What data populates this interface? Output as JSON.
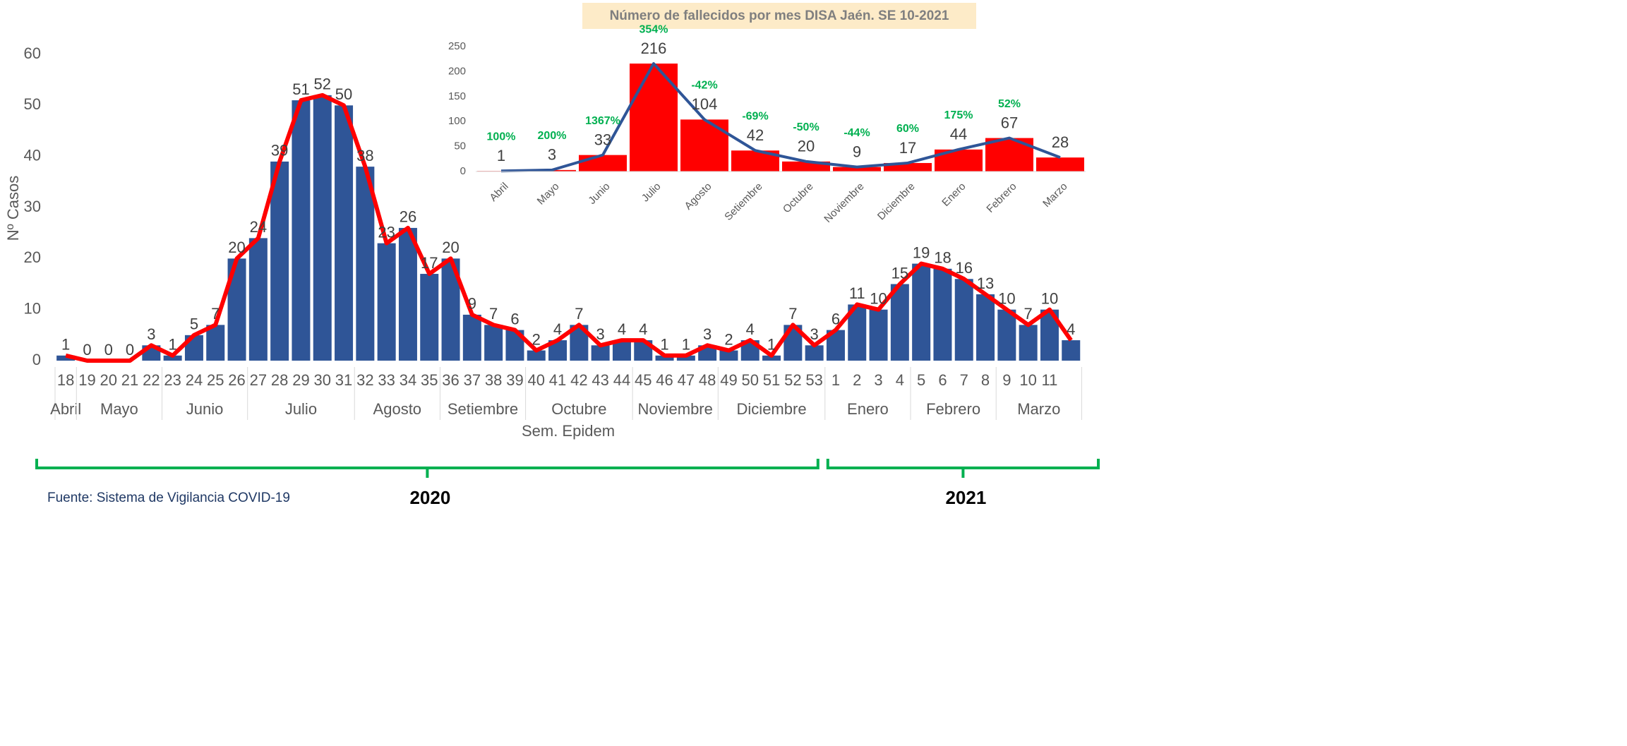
{
  "chart_data": [
    {
      "type": "bar",
      "x_label": "Sem. Epidem",
      "y_label": "Nº Casos",
      "categories": [
        "18",
        "19",
        "20",
        "21",
        "22",
        "23",
        "24",
        "25",
        "26",
        "27",
        "28",
        "29",
        "30",
        "31",
        "32",
        "33",
        "34",
        "35",
        "36",
        "37",
        "38",
        "39",
        "40",
        "41",
        "42",
        "43",
        "44",
        "45",
        "46",
        "47",
        "48",
        "49",
        "50",
        "51",
        "52",
        "53",
        "1",
        "2",
        "3",
        "4",
        "5",
        "6",
        "7",
        "8",
        "9",
        "10",
        "11",
        null
      ],
      "months": [
        "Abril",
        "Mayo",
        "Mayo",
        "Mayo",
        "Mayo",
        "Junio",
        "Junio",
        "Junio",
        "Junio",
        "Julio",
        "Julio",
        "Julio",
        "Julio",
        "Julio",
        "Agosto",
        "Agosto",
        "Agosto",
        "Agosto",
        "Setiembre",
        "Setiembre",
        "Setiembre",
        "Setiembre",
        "Octubre",
        "Octubre",
        "Octubre",
        "Octubre",
        "Octubre",
        "Noviembre",
        "Noviembre",
        "Noviembre",
        "Noviembre",
        "Diciembre",
        "Diciembre",
        "Diciembre",
        "Diciembre",
        "Diciembre",
        "Enero",
        "Enero",
        "Enero",
        "Enero",
        "Febrero",
        "Febrero",
        "Febrero",
        "Febrero",
        "Marzo",
        "Marzo",
        "Marzo",
        "Marzo"
      ],
      "years": [
        "2020",
        "2020",
        "2020",
        "2020",
        "2020",
        "2020",
        "2020",
        "2020",
        "2020",
        "2020",
        "2020",
        "2020",
        "2020",
        "2020",
        "2020",
        "2020",
        "2020",
        "2020",
        "2020",
        "2020",
        "2020",
        "2020",
        "2020",
        "2020",
        "2020",
        "2020",
        "2020",
        "2020",
        "2020",
        "2020",
        "2020",
        "2020",
        "2020",
        "2020",
        "2020",
        "2020",
        "2021",
        "2021",
        "2021",
        "2021",
        "2021",
        "2021",
        "2021",
        "2021",
        "2021",
        "2021",
        "2021",
        "2021"
      ],
      "values": [
        1,
        0,
        0,
        0,
        3,
        1,
        5,
        7,
        20,
        24,
        39,
        51,
        52,
        50,
        38,
        23,
        26,
        17,
        20,
        9,
        7,
        6,
        2,
        4,
        7,
        3,
        4,
        4,
        1,
        1,
        3,
        2,
        4,
        1,
        7,
        3,
        6,
        11,
        10,
        15,
        19,
        18,
        16,
        13,
        10,
        7,
        10,
        4
      ],
      "color": "#2f5597",
      "line_color": "#ff0000",
      "ylim": [
        0,
        60
      ],
      "yticks": [
        0,
        10,
        20,
        30,
        40,
        50,
        60
      ],
      "grid": false
    },
    {
      "type": "bar",
      "title": "Número de fallecidos por mes DISA Jaén. SE 10-2021",
      "categories": [
        "Abril",
        "Mayo",
        "Junio",
        "Julio",
        "Agosto",
        "Setiembre",
        "Octubre",
        "Noviembre",
        "Diciembre",
        "Enero",
        "Febrero",
        "Marzo"
      ],
      "values": [
        1,
        3,
        33,
        216,
        104,
        42,
        20,
        9,
        17,
        44,
        67,
        28
      ],
      "pct_change": [
        100,
        200,
        1367,
        354,
        -42,
        -69,
        -50,
        -44,
        60,
        175,
        52,
        null
      ],
      "pct_change_labels": [
        "100%",
        "200%",
        "1367%",
        "354%",
        "-42%",
        "-69%",
        "-50%",
        "-44%",
        "60%",
        "175%",
        "52%",
        null
      ],
      "color": "#ff0000",
      "line_color": "#2f5597",
      "pct_color": "#00b050",
      "ylim": [
        0,
        250
      ],
      "yticks": [
        0,
        50,
        100,
        150,
        200,
        250
      ],
      "grid": false
    }
  ],
  "source": "Fuente: Sistema de Vigilancia COVID-19"
}
